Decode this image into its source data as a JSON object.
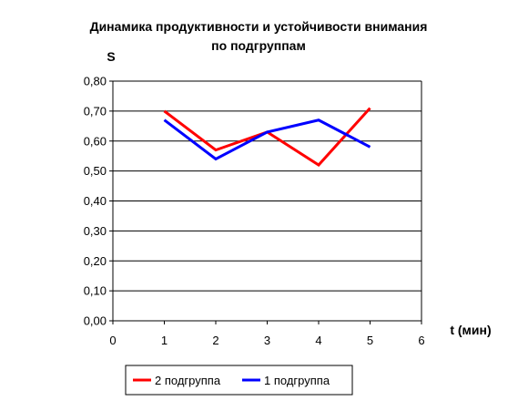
{
  "chart_data": {
    "type": "line",
    "title_lines": [
      "Динамика продуктивности и устойчивости внимания",
      "по подгруппам"
    ],
    "ylabel": "S",
    "xlabel": "t (мин)",
    "x": [
      1,
      2,
      3,
      4,
      5
    ],
    "xlim": [
      0,
      6
    ],
    "ylim": [
      0,
      0.8
    ],
    "x_ticks": [
      "0",
      "1",
      "2",
      "3",
      "4",
      "5",
      "6"
    ],
    "y_ticks": [
      "0,00",
      "0,10",
      "0,20",
      "0,30",
      "0,40",
      "0,50",
      "0,60",
      "0,70",
      "0,80"
    ],
    "grid": "horizontal",
    "legend_position": "bottom",
    "series": [
      {
        "name": "2 подгруппа",
        "color": "#ff0000",
        "values": [
          0.7,
          0.57,
          0.63,
          0.52,
          0.71
        ]
      },
      {
        "name": "1 подгруппа",
        "color": "#0000ff",
        "values": [
          0.67,
          0.54,
          0.63,
          0.67,
          0.58
        ]
      }
    ]
  }
}
